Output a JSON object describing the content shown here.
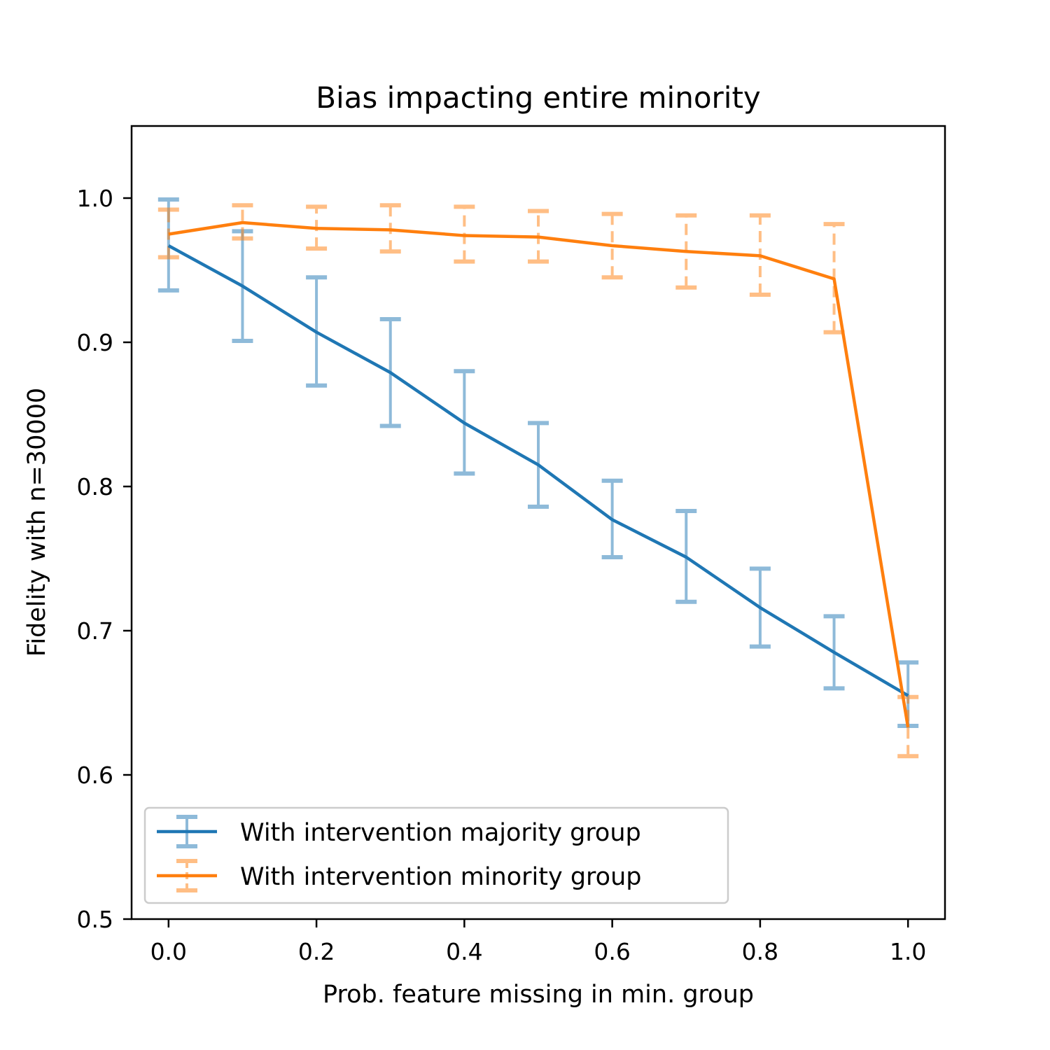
{
  "chart_data": {
    "type": "line",
    "title": "Bias impacting entire minority",
    "xlabel": "Prob. feature missing in min. group",
    "ylabel": "Fidelity with n=30000",
    "xlim": [
      -0.05,
      1.05
    ],
    "ylim": [
      0.5,
      1.05
    ],
    "xticks": [
      "0.0",
      "0.2",
      "0.4",
      "0.6",
      "0.8",
      "1.0"
    ],
    "yticks": [
      "0.5",
      "0.6",
      "0.7",
      "0.8",
      "0.9",
      "1.0"
    ],
    "grid": false,
    "legend_position": "lower-left",
    "x": [
      0.0,
      0.1,
      0.2,
      0.3,
      0.4,
      0.5,
      0.6,
      0.7,
      0.8,
      0.9,
      1.0
    ],
    "series": [
      {
        "name": "With intervention majority group",
        "color": "#1f77b4",
        "errorbar_style": "solid",
        "values": [
          0.967,
          0.939,
          0.907,
          0.879,
          0.844,
          0.815,
          0.777,
          0.751,
          0.716,
          0.685,
          0.655
        ],
        "err_low": [
          0.936,
          0.901,
          0.87,
          0.842,
          0.809,
          0.786,
          0.751,
          0.72,
          0.689,
          0.66,
          0.634
        ],
        "err_high": [
          0.999,
          0.977,
          0.945,
          0.916,
          0.88,
          0.844,
          0.804,
          0.783,
          0.743,
          0.71,
          0.678
        ]
      },
      {
        "name": "With intervention minority group",
        "color": "#ff7f0e",
        "errorbar_style": "dashed",
        "values": [
          0.975,
          0.983,
          0.979,
          0.978,
          0.974,
          0.973,
          0.967,
          0.963,
          0.96,
          0.944,
          0.633
        ],
        "err_low": [
          0.959,
          0.972,
          0.965,
          0.963,
          0.956,
          0.956,
          0.945,
          0.938,
          0.933,
          0.907,
          0.613
        ],
        "err_high": [
          0.992,
          0.995,
          0.994,
          0.995,
          0.994,
          0.991,
          0.989,
          0.988,
          0.988,
          0.982,
          0.654
        ]
      }
    ]
  }
}
